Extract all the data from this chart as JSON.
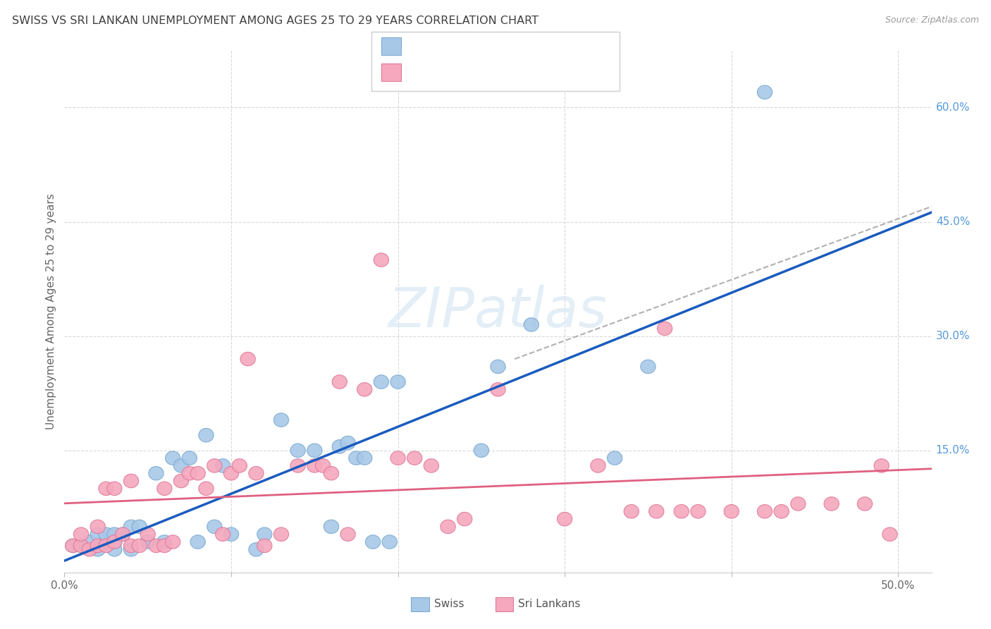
{
  "title": "SWISS VS SRI LANKAN UNEMPLOYMENT AMONG AGES 25 TO 29 YEARS CORRELATION CHART",
  "source": "Source: ZipAtlas.com",
  "ylabel": "Unemployment Among Ages 25 to 29 years",
  "xlim": [
    0.0,
    0.52
  ],
  "ylim": [
    -0.01,
    0.675
  ],
  "yticks_right": [
    0.15,
    0.3,
    0.45,
    0.6
  ],
  "ytick_right_labels": [
    "15.0%",
    "30.0%",
    "45.0%",
    "60.0%"
  ],
  "swiss_color": "#a8c8e8",
  "swiss_edge_color": "#7aaad0",
  "sri_lankan_color": "#f5a8be",
  "sri_lankan_edge_color": "#e07898",
  "swiss_line_color": "#1a5bbf",
  "sri_lankan_line_color": "#e06080",
  "dashed_line_color": "#b0b0b0",
  "legend_text_color": "#2060c0",
  "background_color": "#ffffff",
  "grid_color": "#d8d8d8",
  "title_color": "#404040",
  "axis_label_color": "#666666",
  "right_tick_color": "#5599dd",
  "swiss_x": [
    0.005,
    0.01,
    0.015,
    0.02,
    0.02,
    0.025,
    0.025,
    0.03,
    0.03,
    0.03,
    0.035,
    0.04,
    0.04,
    0.045,
    0.05,
    0.055,
    0.06,
    0.065,
    0.07,
    0.075,
    0.08,
    0.085,
    0.09,
    0.095,
    0.1,
    0.115,
    0.12,
    0.13,
    0.14,
    0.15,
    0.16,
    0.165,
    0.17,
    0.175,
    0.18,
    0.185,
    0.19,
    0.195,
    0.2,
    0.25,
    0.26,
    0.28,
    0.33,
    0.35,
    0.42
  ],
  "swiss_y": [
    0.025,
    0.025,
    0.03,
    0.02,
    0.04,
    0.03,
    0.04,
    0.02,
    0.03,
    0.04,
    0.04,
    0.02,
    0.05,
    0.05,
    0.03,
    0.12,
    0.03,
    0.14,
    0.13,
    0.14,
    0.03,
    0.17,
    0.05,
    0.13,
    0.04,
    0.02,
    0.04,
    0.19,
    0.15,
    0.15,
    0.05,
    0.155,
    0.16,
    0.14,
    0.14,
    0.03,
    0.24,
    0.03,
    0.24,
    0.15,
    0.26,
    0.315,
    0.14,
    0.26,
    0.62
  ],
  "sri_x": [
    0.005,
    0.01,
    0.01,
    0.015,
    0.02,
    0.02,
    0.025,
    0.025,
    0.03,
    0.03,
    0.035,
    0.04,
    0.04,
    0.045,
    0.05,
    0.055,
    0.06,
    0.06,
    0.065,
    0.07,
    0.075,
    0.08,
    0.085,
    0.09,
    0.095,
    0.1,
    0.105,
    0.11,
    0.115,
    0.12,
    0.13,
    0.14,
    0.15,
    0.155,
    0.16,
    0.165,
    0.17,
    0.18,
    0.19,
    0.2,
    0.21,
    0.22,
    0.23,
    0.24,
    0.26,
    0.3,
    0.32,
    0.34,
    0.355,
    0.36,
    0.37,
    0.38,
    0.4,
    0.42,
    0.43,
    0.44,
    0.46,
    0.48,
    0.49,
    0.495
  ],
  "sri_y": [
    0.025,
    0.025,
    0.04,
    0.02,
    0.025,
    0.05,
    0.1,
    0.025,
    0.03,
    0.1,
    0.04,
    0.11,
    0.025,
    0.025,
    0.04,
    0.025,
    0.025,
    0.1,
    0.03,
    0.11,
    0.12,
    0.12,
    0.1,
    0.13,
    0.04,
    0.12,
    0.13,
    0.27,
    0.12,
    0.025,
    0.04,
    0.13,
    0.13,
    0.13,
    0.12,
    0.24,
    0.04,
    0.23,
    0.4,
    0.14,
    0.14,
    0.13,
    0.05,
    0.06,
    0.23,
    0.06,
    0.13,
    0.07,
    0.07,
    0.31,
    0.07,
    0.07,
    0.07,
    0.07,
    0.07,
    0.08,
    0.08,
    0.08,
    0.13,
    0.04
  ]
}
